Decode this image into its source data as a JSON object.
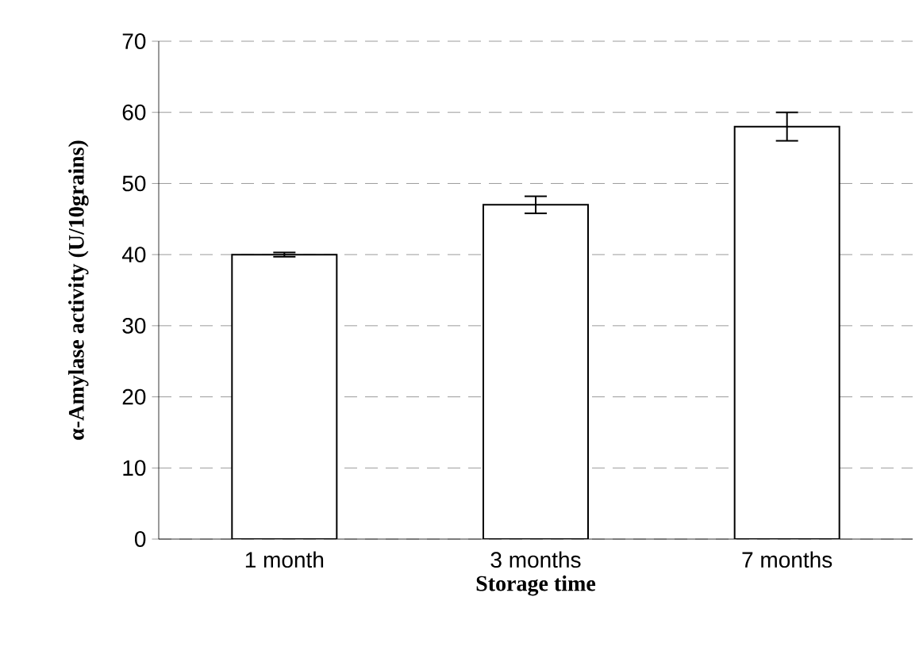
{
  "chart_data": {
    "type": "bar",
    "xlabel": "Storage time",
    "ylabel": "α-Amylase activity (U/10grains)",
    "categories": [
      "1 month",
      "3 months",
      "7 months"
    ],
    "values": [
      40,
      47,
      58
    ],
    "errors": [
      0.3,
      1.2,
      2
    ],
    "color": "#ffffff",
    "ylim": [
      0,
      70
    ],
    "yticks": [
      0,
      10,
      20,
      30,
      40,
      50,
      60,
      70
    ],
    "grid": "y"
  }
}
